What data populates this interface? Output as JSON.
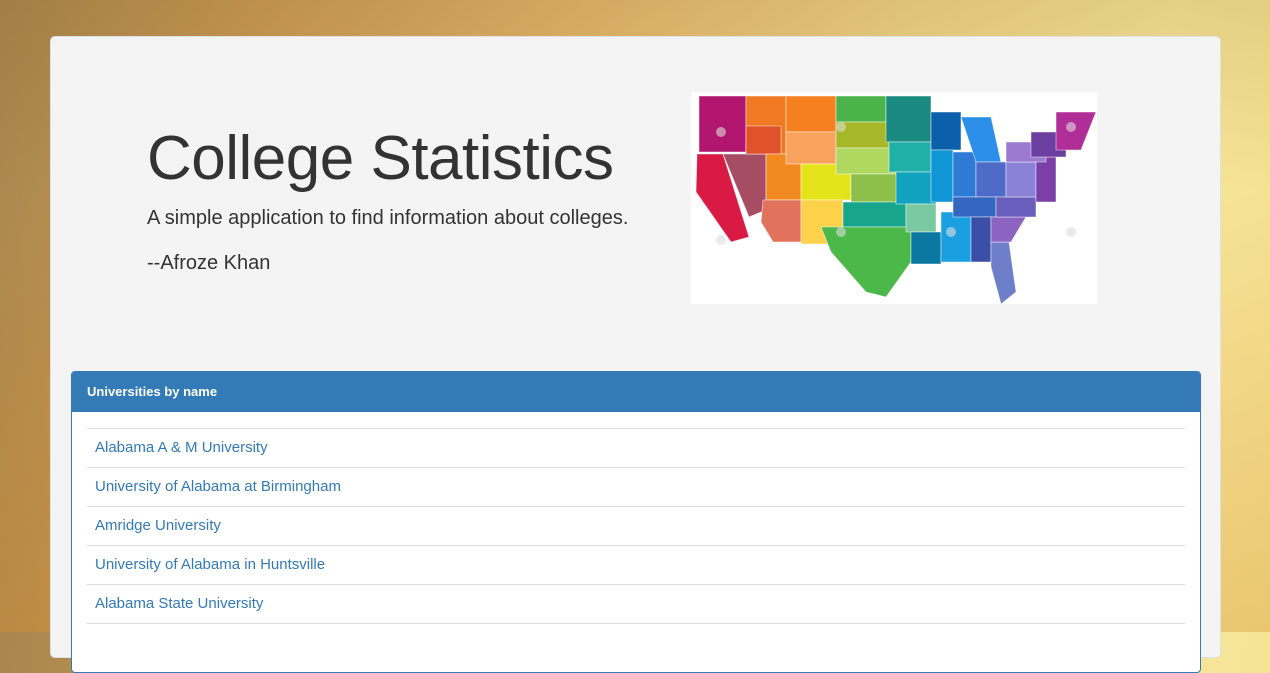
{
  "header": {
    "title": "College Statistics",
    "subtitle": "A simple application to find information about colleges.",
    "author": "--Afroze Khan"
  },
  "panel": {
    "heading": "Universities by name",
    "universities": [
      "Alabama A & M University",
      "University of Alabama at Birmingham",
      "Amridge University",
      "University of Alabama in Huntsville",
      "Alabama State University"
    ]
  },
  "colors": {
    "panel_accent": "#337ab7",
    "link": "#337ab7"
  }
}
